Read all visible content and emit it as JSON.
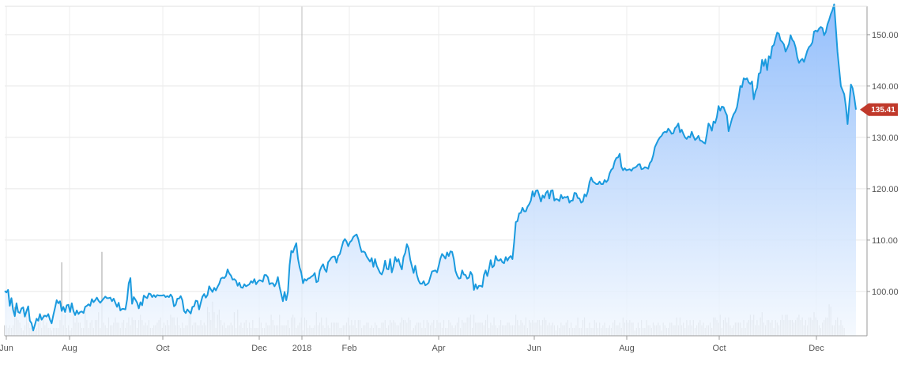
{
  "chart_data": {
    "type": "area",
    "x_ticks": [
      "Jun",
      "Aug",
      "Oct",
      "Dec",
      "2018",
      "Feb",
      "Apr",
      "Jun",
      "Aug",
      "Oct",
      "Dec"
    ],
    "y_ticks": [
      "100.00",
      "110.00",
      "120.00",
      "130.00",
      "140.00",
      "150.00"
    ],
    "ylim": [
      93.4,
      155.9
    ],
    "last_price": 135.41,
    "last_price_label": "135.41",
    "grid": true,
    "y_axis_position": "right",
    "series": [
      {
        "values": [
          100.1,
          99.8,
          100.3,
          97.2,
          98.7,
          96.4,
          95.2,
          97.7,
          96.0,
          95.8,
          96.7,
          96.9,
          95.1,
          96.2,
          97.1,
          94.3,
          93.8,
          92.4,
          93.5,
          94.7,
          94.3,
          95.6,
          94.5,
          95.0,
          95.3,
          95.1,
          95.6,
          94.5,
          93.8,
          95.4,
          96.8,
          98.3,
          97.7,
          98.1,
          96.2,
          97.0,
          96.0,
          97.3,
          97.4,
          96.0,
          97.7,
          96.2,
          95.4,
          96.3,
          95.6,
          96.0,
          96.1,
          95.8,
          97.0,
          97.2,
          97.5,
          97.2,
          98.5,
          97.9,
          98.3,
          98.8,
          98.2,
          97.8,
          98.2,
          98.6,
          99.0,
          98.7,
          98.7,
          98.8,
          98.1,
          98.6,
          97.8,
          97.0,
          97.8,
          96.3,
          96.6,
          96.6,
          96.5,
          98.4,
          101.6,
          102.6,
          97.6,
          98.9,
          98.4,
          97.8,
          96.7,
          97.9,
          97.3,
          99.2,
          98.9,
          98.7,
          99.6,
          99.5,
          98.9,
          99.3,
          98.9,
          99.3,
          99.2,
          99.2,
          99.2,
          99.3,
          98.9,
          99.1,
          98.9,
          99.4,
          98.9,
          97.1,
          97.4,
          98.6,
          98.6,
          99.1,
          98.3,
          96.2,
          95.8,
          96.5,
          96.1,
          95.7,
          97.0,
          97.1,
          98.2,
          98.1,
          96.5,
          97.8,
          99.0,
          99.5,
          98.8,
          99.3,
          101.0,
          100.4,
          99.9,
          100.7,
          100.2,
          100.9,
          101.5,
          102.5,
          102.7,
          102.6,
          103.0,
          104.3,
          103.5,
          103.1,
          102.3,
          102.4,
          102.1,
          101.1,
          101.7,
          100.8,
          100.7,
          101.4,
          101.0,
          101.2,
          101.4,
          102.0,
          101.7,
          102.4,
          101.4,
          101.9,
          102.2,
          102.1,
          101.9,
          103.2,
          103.2,
          102.8,
          101.4,
          101.6,
          101.6,
          101.0,
          101.6,
          102.8,
          100.9,
          99.5,
          98.1,
          99.9,
          98.3,
          99.9,
          105.1,
          107.9,
          107.6,
          108.6,
          109.4,
          106.4,
          104.7,
          103.6,
          101.6,
          102.4,
          102.1,
          102.5,
          102.6,
          102.9,
          103.1,
          103.6,
          101.8,
          102.0,
          104.0,
          104.8,
          105.3,
          104.3,
          103.8,
          105.7,
          106.1,
          106.6,
          106.8,
          106.8,
          105.6,
          106.9,
          107.3,
          108.5,
          109.7,
          110.2,
          109.7,
          108.8,
          109.6,
          109.9,
          110.6,
          110.9,
          111.1,
          110.2,
          108.8,
          107.7,
          107.8,
          107.6,
          106.8,
          106.3,
          105.8,
          106.5,
          104.8,
          106.3,
          105.0,
          104.3,
          103.6,
          103.3,
          104.2,
          106.0,
          104.4,
          104.3,
          106.3,
          103.7,
          104.9,
          106.7,
          105.8,
          106.3,
          105.1,
          104.3,
          106.7,
          107.5,
          109.2,
          108.4,
          106.2,
          104.9,
          103.6,
          105.0,
          103.2,
          102.1,
          101.5,
          101.5,
          102.0,
          101.2,
          101.4,
          101.7,
          102.8,
          103.9,
          104.0,
          104.1,
          103.7,
          105.0,
          106.4,
          107.3,
          106.9,
          106.4,
          107.6,
          106.9,
          107.8,
          107.7,
          106.3,
          104.0,
          103.1,
          102.5,
          102.6,
          104.1,
          103.3,
          103.2,
          102.5,
          102.7,
          103.8,
          103.2,
          100.3,
          101.4,
          100.5,
          101.1,
          101.1,
          100.9,
          103.2,
          104.1,
          103.0,
          104.4,
          106.1,
          104.7,
          105.0,
          106.9,
          106.1,
          106.0,
          106.3,
          105.7,
          105.5,
          106.7,
          106.0,
          106.6,
          106.9,
          106.3,
          109.6,
          113.5,
          113.7,
          115.2,
          115.3,
          116.3,
          115.6,
          115.6,
          116.5,
          117.0,
          117.7,
          119.5,
          118.5,
          119.6,
          119.7,
          118.7,
          117.5,
          118.7,
          118.2,
          119.2,
          119.6,
          118.1,
          119.6,
          119.7,
          117.7,
          118.0,
          117.9,
          117.6,
          118.8,
          118.1,
          118.4,
          118.3,
          118.5,
          117.3,
          117.7,
          117.7,
          119.2,
          119.1,
          118.2,
          118.1,
          117.3,
          117.5,
          118.9,
          118.5,
          119.5,
          121.3,
          122.2,
          121.4,
          121.2,
          120.9,
          120.9,
          121.4,
          120.9,
          120.9,
          121.7,
          121.3,
          121.7,
          123.0,
          123.7,
          124.0,
          125.3,
          126.0,
          126.1,
          126.8,
          124.3,
          123.6,
          124.0,
          123.6,
          123.7,
          123.8,
          123.5,
          124.0,
          124.1,
          124.3,
          124.7,
          124.8,
          123.8,
          123.9,
          124.2,
          124.1,
          123.9,
          125.0,
          125.4,
          126.5,
          128.1,
          128.8,
          129.5,
          130.0,
          130.3,
          130.9,
          131.1,
          131.0,
          131.7,
          131.3,
          130.7,
          130.8,
          131.8,
          132.1,
          132.7,
          131.0,
          131.5,
          130.7,
          130.0,
          129.7,
          130.2,
          130.0,
          131.1,
          130.2,
          129.5,
          129.8,
          130.3,
          129.4,
          129.3,
          129.0,
          128.8,
          130.6,
          132.7,
          132.2,
          131.3,
          133.1,
          132.8,
          134.0,
          136.1,
          135.2,
          136.0,
          135.9,
          135.0,
          134.3,
          131.2,
          132.4,
          133.6,
          134.5,
          135.0,
          135.9,
          137.8,
          140.0,
          139.8,
          141.5,
          141.3,
          141.5,
          140.7,
          140.4,
          140.9,
          137.4,
          138.9,
          139.7,
          142.4,
          142.6,
          145.1,
          143.9,
          145.2,
          143.1,
          145.8,
          145.4,
          147.7,
          148.0,
          149.3,
          150.4,
          150.2,
          148.9,
          148.6,
          148.1,
          146.7,
          147.4,
          148.2,
          149.9,
          149.0,
          148.6,
          147.5,
          145.6,
          144.5,
          145.0,
          145.3,
          144.7,
          145.8,
          146.9,
          147.6,
          147.9,
          148.5,
          150.6,
          150.8,
          150.6,
          151.2,
          151.5,
          151.3,
          149.9,
          150.5,
          152.0,
          152.9,
          154.0,
          154.8,
          155.9,
          151.3,
          146.6,
          143.3,
          140.0,
          139.2,
          138.4,
          136.0,
          132.6,
          136.5,
          140.3,
          139.6,
          137.8,
          135.4
        ],
        "color": "#1a9ade",
        "fill_top": "#8ab9fb",
        "fill_bottom": "#f3f8fe"
      }
    ],
    "volume": {
      "values": [
        4,
        4,
        3,
        4,
        3,
        4,
        11,
        7,
        6,
        5,
        3,
        2,
        4,
        9,
        5,
        3,
        3,
        3,
        2,
        3,
        5,
        7,
        3,
        8,
        4,
        5,
        3,
        3,
        2,
        3,
        3,
        3,
        3,
        6,
        28,
        4,
        8,
        3,
        4,
        2,
        3,
        8,
        5,
        7,
        5,
        5,
        3,
        3,
        9,
        6,
        3,
        5,
        6,
        3,
        6,
        6,
        9,
        3,
        32,
        5,
        4,
        3,
        7,
        4,
        4,
        5,
        7,
        5,
        5,
        3,
        5,
        6,
        3,
        5,
        7,
        4,
        7,
        6,
        6,
        3,
        6,
        8,
        6,
        4,
        5,
        4,
        6,
        3,
        3,
        4,
        4,
        5,
        6,
        7,
        3,
        5,
        4,
        6,
        4,
        8,
        7,
        7,
        4,
        7,
        4,
        3,
        5,
        3,
        4,
        4,
        8,
        9,
        4,
        5,
        5,
        4,
        4,
        6,
        4,
        5,
        4,
        11,
        9,
        6,
        13,
        9,
        3,
        8,
        10,
        6,
        4,
        5,
        3,
        4,
        4,
        5,
        4,
        9,
        3,
        10,
        4,
        5,
        3,
        5,
        6,
        3,
        5,
        3,
        6,
        3,
        3,
        3,
        7,
        5,
        3,
        3,
        5,
        4,
        4,
        8,
        6,
        4,
        4,
        4,
        8,
        4,
        4,
        4,
        4,
        6,
        3,
        7,
        8,
        7,
        3,
        4,
        5,
        7,
        2,
        7,
        6,
        3,
        4,
        3,
        3,
        4,
        9,
        4,
        5,
        7,
        4,
        3,
        7,
        4,
        3,
        5,
        5,
        5,
        5,
        5,
        3,
        3,
        4,
        4,
        5,
        7,
        4,
        6,
        4,
        6,
        3,
        6,
        6,
        3,
        4,
        4,
        5,
        5,
        3,
        4,
        3,
        5,
        4,
        3,
        3,
        5,
        5,
        6,
        3,
        4,
        6,
        5,
        6,
        5,
        4,
        4,
        5,
        7,
        6,
        6,
        5,
        7,
        6,
        2,
        3,
        4,
        5,
        5,
        5,
        3,
        6,
        3,
        6,
        5,
        4,
        5,
        6,
        3,
        6,
        5,
        5,
        3,
        6,
        3,
        3,
        6,
        5,
        4,
        3,
        4,
        5,
        7,
        3,
        6,
        5,
        5,
        7,
        7,
        8,
        3,
        8,
        5,
        5,
        5,
        5,
        5,
        4,
        6,
        8,
        3,
        5,
        4,
        7,
        4,
        3,
        4,
        6,
        4,
        4,
        4,
        5,
        5,
        4,
        4,
        4,
        8,
        6,
        4,
        6,
        5,
        4,
        7,
        3,
        6,
        5,
        6,
        5,
        5,
        6,
        6,
        4,
        6,
        7,
        6,
        4,
        5,
        4,
        5,
        4,
        2,
        4,
        3,
        5,
        4,
        4,
        5,
        6,
        3,
        5,
        3,
        3,
        4,
        7,
        3,
        3,
        6,
        7,
        3,
        3,
        5,
        3,
        3,
        6,
        5,
        3,
        5,
        3,
        4,
        5,
        3,
        3,
        4,
        3,
        5,
        6,
        4,
        4,
        5,
        3,
        7,
        5,
        6,
        5,
        6,
        5,
        5,
        2,
        3,
        5,
        3,
        6,
        3,
        3,
        6,
        4,
        4,
        3,
        5,
        4,
        4,
        5,
        4,
        2,
        5,
        4,
        3,
        3,
        5,
        5,
        4,
        4,
        7,
        4,
        7,
        4,
        5,
        3,
        6,
        4,
        6,
        4,
        6,
        3,
        4,
        5,
        6,
        4,
        5,
        3,
        4,
        4,
        5,
        3,
        7,
        7,
        6,
        5,
        8,
        3,
        6,
        7,
        5,
        7,
        4,
        3,
        4,
        5,
        5,
        5,
        5,
        3,
        6,
        3,
        5,
        6,
        8,
        6,
        8,
        4,
        6,
        4,
        7,
        9,
        5,
        4,
        6,
        6,
        5,
        6,
        3,
        6,
        5,
        4,
        6,
        8,
        6,
        8,
        8,
        6,
        6,
        6,
        5,
        6,
        7,
        8,
        6,
        7,
        4,
        6,
        4,
        7,
        7,
        6,
        9,
        7,
        6,
        4,
        3,
        5,
        6,
        7,
        7,
        12,
        11,
        4,
        4,
        6,
        7,
        4,
        6,
        4,
        3
      ],
      "color": "#a8a8a8"
    }
  }
}
